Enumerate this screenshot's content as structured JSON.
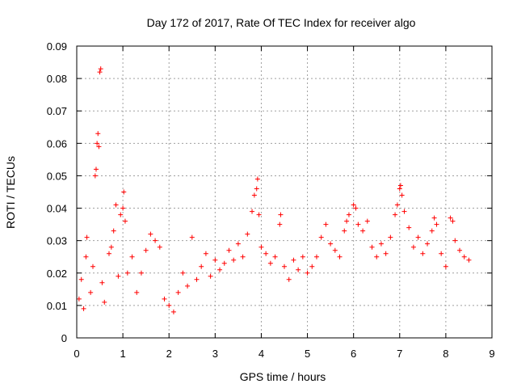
{
  "chart_data": {
    "type": "scatter",
    "title": "Day 172 of 2017, Rate Of TEC Index for receiver algo",
    "xlabel": "GPS time / hours",
    "ylabel": "ROTI / TECUs",
    "xlim": [
      0,
      9
    ],
    "ylim": [
      0,
      0.09
    ],
    "xticks": [
      0,
      1,
      2,
      3,
      4,
      5,
      6,
      7,
      8,
      9
    ],
    "xtick_labels": [
      "0",
      "1",
      "2",
      "3",
      "4",
      "5",
      "6",
      "7",
      "8",
      "9"
    ],
    "yticks": [
      0,
      0.01,
      0.02,
      0.03,
      0.04,
      0.05,
      0.06,
      0.07,
      0.08,
      0.09
    ],
    "ytick_labels": [
      "0",
      "0.01",
      "0.02",
      "0.03",
      "0.04",
      "0.05",
      "0.06",
      "0.07",
      "0.08",
      "0.09"
    ],
    "grid": true,
    "marker": "plus",
    "color": "#ff0000",
    "series": [
      {
        "name": "ROTI",
        "x_range": [
          0.0,
          8.5
        ],
        "points": [
          [
            0.05,
            0.012
          ],
          [
            0.1,
            0.018
          ],
          [
            0.15,
            0.009
          ],
          [
            0.2,
            0.025
          ],
          [
            0.22,
            0.031
          ],
          [
            0.3,
            0.014
          ],
          [
            0.35,
            0.022
          ],
          [
            0.4,
            0.05
          ],
          [
            0.42,
            0.052
          ],
          [
            0.44,
            0.06
          ],
          [
            0.46,
            0.063
          ],
          [
            0.48,
            0.059
          ],
          [
            0.5,
            0.082
          ],
          [
            0.52,
            0.083
          ],
          [
            0.55,
            0.017
          ],
          [
            0.6,
            0.011
          ],
          [
            0.7,
            0.026
          ],
          [
            0.75,
            0.028
          ],
          [
            0.8,
            0.033
          ],
          [
            0.85,
            0.041
          ],
          [
            0.9,
            0.019
          ],
          [
            0.95,
            0.038
          ],
          [
            1.0,
            0.04
          ],
          [
            1.02,
            0.045
          ],
          [
            1.05,
            0.036
          ],
          [
            1.1,
            0.02
          ],
          [
            1.2,
            0.025
          ],
          [
            1.3,
            0.014
          ],
          [
            1.4,
            0.02
          ],
          [
            1.5,
            0.027
          ],
          [
            1.6,
            0.032
          ],
          [
            1.7,
            0.03
          ],
          [
            1.8,
            0.028
          ],
          [
            1.9,
            0.012
          ],
          [
            2.0,
            0.01
          ],
          [
            2.1,
            0.008
          ],
          [
            2.2,
            0.014
          ],
          [
            2.3,
            0.02
          ],
          [
            2.4,
            0.016
          ],
          [
            2.5,
            0.031
          ],
          [
            2.6,
            0.018
          ],
          [
            2.7,
            0.022
          ],
          [
            2.8,
            0.026
          ],
          [
            2.9,
            0.019
          ],
          [
            3.0,
            0.024
          ],
          [
            3.1,
            0.021
          ],
          [
            3.2,
            0.023
          ],
          [
            3.3,
            0.027
          ],
          [
            3.4,
            0.024
          ],
          [
            3.5,
            0.029
          ],
          [
            3.6,
            0.025
          ],
          [
            3.7,
            0.032
          ],
          [
            3.8,
            0.039
          ],
          [
            3.85,
            0.044
          ],
          [
            3.9,
            0.046
          ],
          [
            3.92,
            0.049
          ],
          [
            3.95,
            0.038
          ],
          [
            4.0,
            0.028
          ],
          [
            4.1,
            0.026
          ],
          [
            4.2,
            0.023
          ],
          [
            4.3,
            0.025
          ],
          [
            4.4,
            0.035
          ],
          [
            4.42,
            0.038
          ],
          [
            4.5,
            0.022
          ],
          [
            4.6,
            0.018
          ],
          [
            4.7,
            0.024
          ],
          [
            4.8,
            0.021
          ],
          [
            4.9,
            0.025
          ],
          [
            5.0,
            0.02
          ],
          [
            5.1,
            0.022
          ],
          [
            5.2,
            0.025
          ],
          [
            5.3,
            0.031
          ],
          [
            5.4,
            0.035
          ],
          [
            5.5,
            0.029
          ],
          [
            5.6,
            0.027
          ],
          [
            5.7,
            0.025
          ],
          [
            5.8,
            0.033
          ],
          [
            5.85,
            0.036
          ],
          [
            5.9,
            0.038
          ],
          [
            6.0,
            0.041
          ],
          [
            6.05,
            0.04
          ],
          [
            6.1,
            0.035
          ],
          [
            6.2,
            0.033
          ],
          [
            6.3,
            0.036
          ],
          [
            6.4,
            0.028
          ],
          [
            6.5,
            0.025
          ],
          [
            6.6,
            0.029
          ],
          [
            6.7,
            0.026
          ],
          [
            6.8,
            0.031
          ],
          [
            6.9,
            0.038
          ],
          [
            6.95,
            0.041
          ],
          [
            7.0,
            0.046
          ],
          [
            7.02,
            0.047
          ],
          [
            7.05,
            0.044
          ],
          [
            7.1,
            0.039
          ],
          [
            7.2,
            0.034
          ],
          [
            7.3,
            0.028
          ],
          [
            7.4,
            0.031
          ],
          [
            7.5,
            0.026
          ],
          [
            7.6,
            0.029
          ],
          [
            7.7,
            0.033
          ],
          [
            7.75,
            0.037
          ],
          [
            7.8,
            0.035
          ],
          [
            7.9,
            0.026
          ],
          [
            8.0,
            0.022
          ],
          [
            8.1,
            0.037
          ],
          [
            8.15,
            0.036
          ],
          [
            8.2,
            0.03
          ],
          [
            8.3,
            0.027
          ],
          [
            8.4,
            0.025
          ],
          [
            8.5,
            0.024
          ]
        ]
      }
    ]
  }
}
